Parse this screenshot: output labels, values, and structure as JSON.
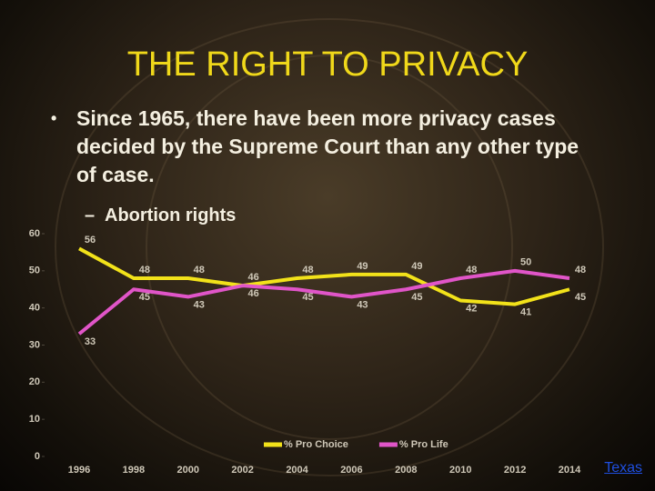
{
  "slide": {
    "title": "THE RIGHT TO PRIVACY",
    "bullet": "Since 1965, there have been more privacy cases decided by the Supreme Court than any other type of case.",
    "sub_bullet": "Abortion rights",
    "link": "Texas"
  },
  "chart_data": {
    "type": "line",
    "categories": [
      "1996",
      "1998",
      "2000",
      "2002",
      "2004",
      "2006",
      "2008",
      "2010",
      "2012",
      "2014"
    ],
    "series": [
      {
        "name": "% Pro Choice",
        "color": "#f2e21a",
        "values": [
          56,
          48,
          48,
          46,
          48,
          49,
          49,
          42,
          41,
          45
        ]
      },
      {
        "name": "% Pro Life",
        "color": "#e055c8",
        "values": [
          33,
          45,
          43,
          46,
          45,
          43,
          45,
          48,
          50,
          48
        ]
      }
    ],
    "ylim": [
      0,
      60
    ],
    "yticks": [
      0,
      10,
      20,
      30,
      40,
      50,
      60
    ],
    "legend": "bottom"
  }
}
